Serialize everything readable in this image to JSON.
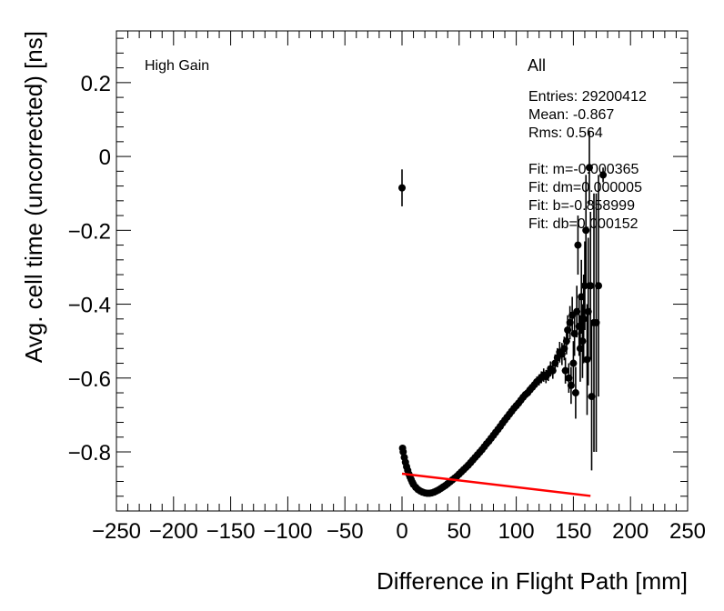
{
  "chart_data": {
    "type": "scatter",
    "xlabel": "Difference in Flight Path [mm]",
    "ylabel": "Avg. cell time (uncorrected) [ns]",
    "xlim": [
      -250,
      250
    ],
    "ylim": [
      -0.96,
      0.34
    ],
    "x_ticks": [
      -250,
      -200,
      -150,
      -100,
      -50,
      0,
      50,
      100,
      150,
      200,
      250
    ],
    "x_tick_labels": [
      "−250",
      "−200",
      "−150",
      "−100",
      "−50",
      "0",
      "50",
      "100",
      "150",
      "200",
      "250"
    ],
    "y_ticks": [
      -0.8,
      -0.6,
      -0.4,
      -0.2,
      0,
      0.2
    ],
    "y_tick_labels": [
      "−0.8",
      "−0.6",
      "−0.4",
      "−0.2",
      "0",
      "0.2"
    ],
    "gain_label": "High Gain",
    "stats": {
      "title": "All",
      "lines": [
        "Entries: 29200412",
        "Mean: -0.867",
        "Rms: 0.564",
        "",
        "Fit: m=-0.000365",
        "Fit: dm=0.000005",
        "Fit: b=-0.858999",
        "Fit: db=0.000152"
      ]
    },
    "fit_line": {
      "slope": -0.000365,
      "intercept": -0.858999,
      "x_range": [
        0,
        165
      ],
      "color": "#ff0000"
    },
    "series": [
      {
        "name": "data",
        "points": [
          [
            0,
            -0.085,
            0.05
          ],
          [
            0.5,
            -0.79,
            0.003
          ],
          [
            1,
            -0.8,
            0.003
          ],
          [
            2,
            -0.815,
            0.003
          ],
          [
            3,
            -0.828,
            0.003
          ],
          [
            4,
            -0.84,
            0.003
          ],
          [
            5,
            -0.85,
            0.003
          ],
          [
            6,
            -0.86,
            0.003
          ],
          [
            7,
            -0.868,
            0.003
          ],
          [
            8,
            -0.875,
            0.003
          ],
          [
            9,
            -0.882,
            0.003
          ],
          [
            10,
            -0.888,
            0.003
          ],
          [
            12,
            -0.896,
            0.003
          ],
          [
            14,
            -0.902,
            0.003
          ],
          [
            16,
            -0.906,
            0.003
          ],
          [
            18,
            -0.909,
            0.003
          ],
          [
            20,
            -0.911,
            0.003
          ],
          [
            22,
            -0.912,
            0.003
          ],
          [
            24,
            -0.912,
            0.003
          ],
          [
            26,
            -0.911,
            0.003
          ],
          [
            28,
            -0.909,
            0.003
          ],
          [
            30,
            -0.906,
            0.003
          ],
          [
            32,
            -0.903,
            0.003
          ],
          [
            34,
            -0.899,
            0.003
          ],
          [
            36,
            -0.895,
            0.003
          ],
          [
            38,
            -0.891,
            0.003
          ],
          [
            40,
            -0.886,
            0.003
          ],
          [
            42,
            -0.881,
            0.003
          ],
          [
            44,
            -0.876,
            0.003
          ],
          [
            46,
            -0.871,
            0.003
          ],
          [
            48,
            -0.866,
            0.003
          ],
          [
            50,
            -0.86,
            0.003
          ],
          [
            52,
            -0.854,
            0.003
          ],
          [
            54,
            -0.848,
            0.003
          ],
          [
            56,
            -0.842,
            0.003
          ],
          [
            58,
            -0.836,
            0.003
          ],
          [
            60,
            -0.829,
            0.003
          ],
          [
            62,
            -0.822,
            0.003
          ],
          [
            64,
            -0.815,
            0.003
          ],
          [
            66,
            -0.808,
            0.003
          ],
          [
            68,
            -0.801,
            0.003
          ],
          [
            70,
            -0.794,
            0.003
          ],
          [
            72,
            -0.786,
            0.004
          ],
          [
            74,
            -0.778,
            0.004
          ],
          [
            76,
            -0.771,
            0.004
          ],
          [
            78,
            -0.763,
            0.004
          ],
          [
            80,
            -0.755,
            0.004
          ],
          [
            82,
            -0.747,
            0.005
          ],
          [
            84,
            -0.739,
            0.005
          ],
          [
            86,
            -0.731,
            0.005
          ],
          [
            88,
            -0.722,
            0.005
          ],
          [
            90,
            -0.714,
            0.006
          ],
          [
            92,
            -0.706,
            0.006
          ],
          [
            94,
            -0.698,
            0.006
          ],
          [
            96,
            -0.69,
            0.007
          ],
          [
            98,
            -0.682,
            0.007
          ],
          [
            100,
            -0.675,
            0.008
          ],
          [
            102,
            -0.668,
            0.008
          ],
          [
            104,
            -0.66,
            0.009
          ],
          [
            106,
            -0.652,
            0.009
          ],
          [
            108,
            -0.645,
            0.01
          ],
          [
            110,
            -0.64,
            0.01
          ],
          [
            112,
            -0.632,
            0.011
          ],
          [
            114,
            -0.625,
            0.012
          ],
          [
            116,
            -0.618,
            0.013
          ],
          [
            118,
            -0.61,
            0.014
          ],
          [
            120,
            -0.605,
            0.015
          ],
          [
            122,
            -0.598,
            0.016
          ],
          [
            124,
            -0.592,
            0.018
          ],
          [
            126,
            -0.596,
            0.018
          ],
          [
            128,
            -0.588,
            0.02
          ],
          [
            130,
            -0.575,
            0.02
          ],
          [
            132,
            -0.58,
            0.022
          ],
          [
            134,
            -0.56,
            0.024
          ],
          [
            136,
            -0.545,
            0.026
          ],
          [
            138,
            -0.53,
            0.028
          ],
          [
            140,
            -0.535,
            0.03
          ],
          [
            142,
            -0.52,
            0.032
          ],
          [
            143,
            -0.58,
            0.035
          ],
          [
            144,
            -0.5,
            0.036
          ],
          [
            145,
            -0.47,
            0.04
          ],
          [
            146,
            -0.6,
            0.04
          ],
          [
            147,
            -0.45,
            0.045
          ],
          [
            148,
            -0.62,
            0.05
          ],
          [
            149,
            -0.43,
            0.05
          ],
          [
            150,
            -0.56,
            0.06
          ],
          [
            151,
            -0.48,
            0.06
          ],
          [
            152,
            -0.64,
            0.07
          ],
          [
            153,
            -0.42,
            0.07
          ],
          [
            154,
            -0.24,
            0.08
          ],
          [
            155,
            -0.46,
            0.08
          ],
          [
            156,
            -0.52,
            0.09
          ],
          [
            157,
            -0.38,
            0.1
          ],
          [
            158,
            -0.5,
            0.1
          ],
          [
            159,
            -0.44,
            0.12
          ],
          [
            160,
            -0.35,
            0.12
          ],
          [
            161,
            -0.2,
            0.15
          ],
          [
            162,
            -0.55,
            0.15
          ],
          [
            163,
            -0.42,
            0.2
          ],
          [
            164,
            -0.03,
            0.1
          ],
          [
            165,
            -0.35,
            0.2
          ],
          [
            166,
            -0.65,
            0.2
          ],
          [
            168,
            -0.45,
            0.35
          ],
          [
            170,
            -0.45,
            0.35
          ],
          [
            172,
            -0.35,
            0.3
          ],
          [
            176,
            -0.05,
            0.02
          ]
        ]
      }
    ]
  }
}
